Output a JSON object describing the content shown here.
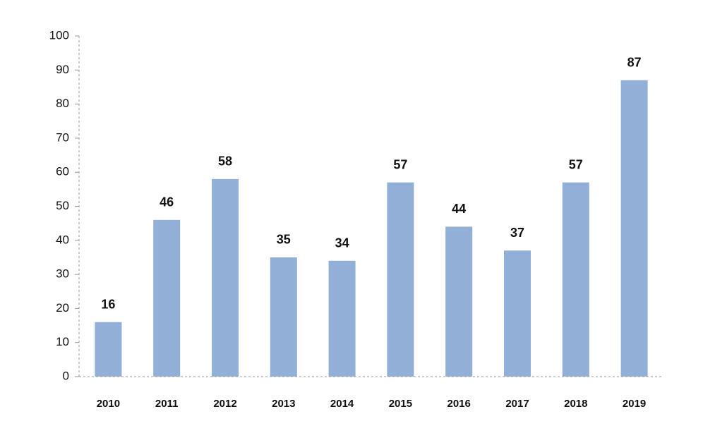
{
  "chart_data": {
    "type": "bar",
    "categories": [
      "2010",
      "2011",
      "2012",
      "2013",
      "2014",
      "2015",
      "2016",
      "2017",
      "2018",
      "2019"
    ],
    "values": [
      16,
      46,
      58,
      35,
      34,
      57,
      44,
      37,
      57,
      87
    ],
    "color": "#92b0d7",
    "ylim": [
      0,
      100
    ],
    "yticks": [
      0,
      10,
      20,
      30,
      40,
      50,
      60,
      70,
      80,
      90,
      100
    ]
  }
}
